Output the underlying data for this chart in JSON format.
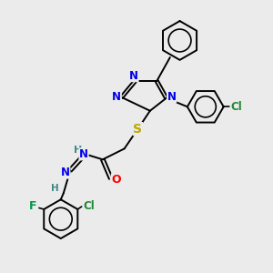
{
  "background_color": "#ebebeb",
  "figsize": [
    3.0,
    3.0
  ],
  "dpi": 100,
  "atom_colors": {
    "N": "#0000ee",
    "S": "#bbaa00",
    "O": "#ff0000",
    "F": "#009944",
    "Cl": "#228833",
    "H": "#448888",
    "C": "#000000"
  },
  "bond_color": "#000000",
  "bond_width": 1.4
}
